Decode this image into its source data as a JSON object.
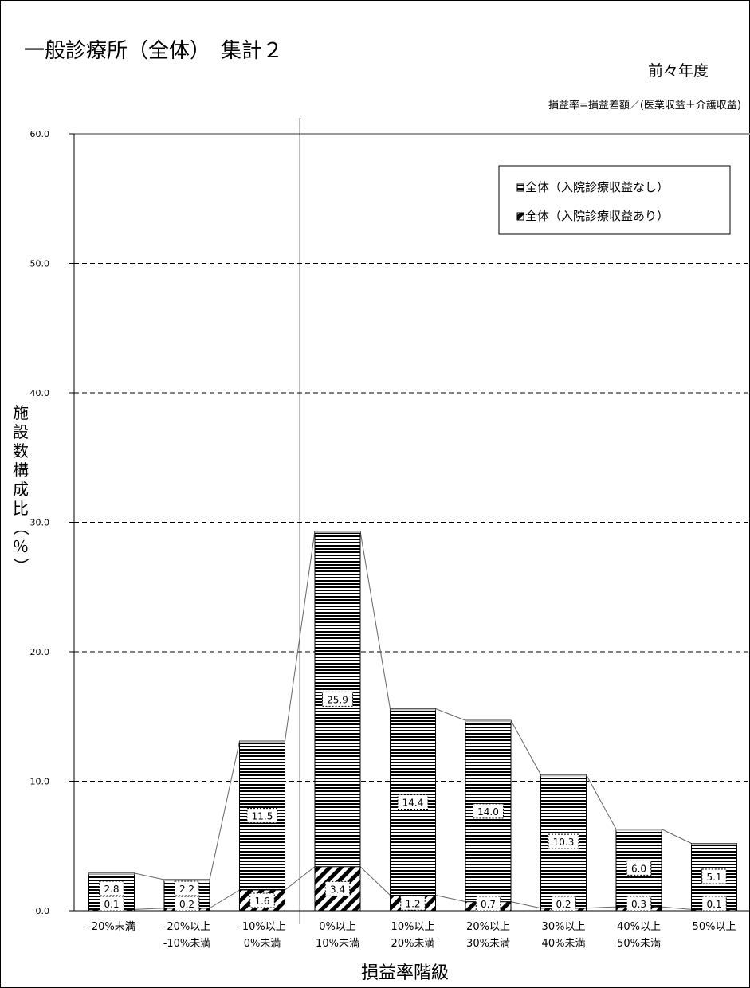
{
  "chart_data": {
    "type": "bar",
    "title": "一般診療所（全体）　集計２",
    "subtitle": "前々年度",
    "note": "損益率=損益差額／(医業収益＋介護収益)",
    "xlabel": "損益率階級",
    "ylabel": "施設数構成比（％）",
    "ylim": [
      0,
      60
    ],
    "yticks": [
      "0.0",
      "10.0",
      "20.0",
      "30.0",
      "40.0",
      "50.0",
      "60.0"
    ],
    "grid": true,
    "stacked": true,
    "legend_position": "top-right",
    "categories": [
      [
        "-20%未満"
      ],
      [
        "-20%以上",
        "-10%未満"
      ],
      [
        "-10%以上",
        "0%未満"
      ],
      [
        "0%以上",
        "10%未満"
      ],
      [
        "10%以上",
        "20%未満"
      ],
      [
        "20%以上",
        "30%未満"
      ],
      [
        "30%以上",
        "40%未満"
      ],
      [
        "40%以上",
        "50%未満"
      ],
      [
        "50%以上"
      ]
    ],
    "series": [
      {
        "name": "全体（入院診療収益あり）",
        "pattern": "diagonal",
        "values": [
          0.1,
          0.2,
          1.6,
          3.4,
          1.2,
          0.7,
          0.2,
          0.3,
          0.1
        ],
        "labels": [
          "0.1",
          "0.2",
          "1.6",
          "3.4",
          "1.2",
          "0.7",
          "0.2",
          "0.3",
          "0.1"
        ]
      },
      {
        "name": "全体（入院診療収益なし）",
        "pattern": "horizontal",
        "values": [
          2.8,
          2.2,
          11.5,
          25.9,
          14.4,
          14.0,
          10.3,
          6.0,
          5.1
        ],
        "labels": [
          "2.8",
          "2.2",
          "11.5",
          "25.9",
          "14.4",
          "14.0",
          "10.3",
          "6.0",
          "5.1"
        ]
      }
    ],
    "legend": [
      "全体（入院診療収益なし）",
      "全体（入院診療収益あり）"
    ]
  }
}
